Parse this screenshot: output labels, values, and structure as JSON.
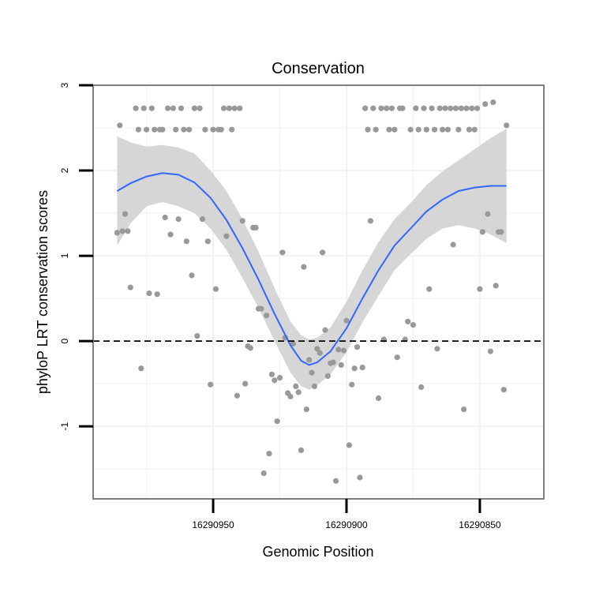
{
  "chart_data": {
    "type": "scatter",
    "title": "Conservation",
    "xlabel": "Genomic Position",
    "ylabel": "phyloP LRT conservation scores",
    "x_reversed": true,
    "xlim": [
      16290995,
      16290826
    ],
    "ylim": [
      -1.85,
      3.0
    ],
    "xticks": [
      16290950,
      16290900,
      16290850
    ],
    "yticks": [
      -1,
      0,
      1,
      2,
      3
    ],
    "reference_line": {
      "y": 0,
      "style": "dashed"
    },
    "grid": true,
    "colors": {
      "points": "#999999",
      "smooth": "#3366ff",
      "ribbon": "#d6d6d6",
      "panel_border": "#7f7f7f",
      "grid": "#f2f2f2"
    },
    "points": [
      [
        16290986,
        1.27
      ],
      [
        16290985,
        2.53
      ],
      [
        16290984,
        1.29
      ],
      [
        16290983,
        1.49
      ],
      [
        16290982,
        1.29
      ],
      [
        16290981,
        0.63
      ],
      [
        16290979,
        2.73
      ],
      [
        16290978,
        2.48
      ],
      [
        16290977,
        -0.32
      ],
      [
        16290976,
        2.73
      ],
      [
        16290975,
        2.48
      ],
      [
        16290974,
        0.56
      ],
      [
        16290973,
        2.73
      ],
      [
        16290972,
        2.48
      ],
      [
        16290971,
        0.55
      ],
      [
        16290970,
        2.48
      ],
      [
        16290969,
        2.48
      ],
      [
        16290968,
        1.45
      ],
      [
        16290967,
        2.73
      ],
      [
        16290966,
        1.25
      ],
      [
        16290965,
        2.73
      ],
      [
        16290964,
        2.48
      ],
      [
        16290963,
        1.43
      ],
      [
        16290962,
        2.73
      ],
      [
        16290961,
        2.48
      ],
      [
        16290960,
        1.17
      ],
      [
        16290959,
        2.48
      ],
      [
        16290958,
        0.77
      ],
      [
        16290957,
        2.73
      ],
      [
        16290956,
        0.06
      ],
      [
        16290955,
        2.73
      ],
      [
        16290954,
        1.43
      ],
      [
        16290953,
        2.48
      ],
      [
        16290952,
        1.17
      ],
      [
        16290951,
        -0.51
      ],
      [
        16290950,
        2.48
      ],
      [
        16290949,
        0.61
      ],
      [
        16290948,
        2.48
      ],
      [
        16290947,
        2.48
      ],
      [
        16290946,
        2.73
      ],
      [
        16290945,
        1.23
      ],
      [
        16290944,
        2.73
      ],
      [
        16290943,
        2.48
      ],
      [
        16290942,
        2.73
      ],
      [
        16290941,
        -0.64
      ],
      [
        16290940,
        2.73
      ],
      [
        16290939,
        1.41
      ],
      [
        16290938,
        -0.5
      ],
      [
        16290937,
        -0.06
      ],
      [
        16290936,
        -0.08
      ],
      [
        16290935,
        1.33
      ],
      [
        16290934,
        1.33
      ],
      [
        16290933,
        0.38
      ],
      [
        16290932,
        0.38
      ],
      [
        16290931,
        -1.55
      ],
      [
        16290930,
        0.3
      ],
      [
        16290929,
        -1.32
      ],
      [
        16290928,
        -0.39
      ],
      [
        16290927,
        -0.46
      ],
      [
        16290926,
        -0.94
      ],
      [
        16290925,
        -0.43
      ],
      [
        16290924,
        1.04
      ],
      [
        16290923,
        0.04
      ],
      [
        16290922,
        -0.61
      ],
      [
        16290921,
        -0.65
      ],
      [
        16290920,
        -0.03
      ],
      [
        16290919,
        -0.53
      ],
      [
        16290918,
        -0.6
      ],
      [
        16290917,
        -1.28
      ],
      [
        16290916,
        0.87
      ],
      [
        16290915,
        -0.8
      ],
      [
        16290914,
        -0.22
      ],
      [
        16290913,
        -0.37
      ],
      [
        16290912,
        -0.53
      ],
      [
        16290911,
        -0.09
      ],
      [
        16290910,
        -0.14
      ],
      [
        16290909,
        1.04
      ],
      [
        16290908,
        0.13
      ],
      [
        16290907,
        -0.41
      ],
      [
        16290906,
        -0.26
      ],
      [
        16290905,
        -0.25
      ],
      [
        16290904,
        -1.64
      ],
      [
        16290903,
        -0.1
      ],
      [
        16290902,
        -0.28
      ],
      [
        16290901,
        -0.11
      ],
      [
        16290900,
        0.24
      ],
      [
        16290899,
        -1.22
      ],
      [
        16290898,
        -0.51
      ],
      [
        16290897,
        -0.32
      ],
      [
        16290896,
        -0.07
      ],
      [
        16290895,
        -1.6
      ],
      [
        16290894,
        -0.31
      ],
      [
        16290893,
        2.73
      ],
      [
        16290892,
        2.48
      ],
      [
        16290891,
        1.41
      ],
      [
        16290890,
        2.73
      ],
      [
        16290889,
        2.48
      ],
      [
        16290888,
        -0.67
      ],
      [
        16290887,
        2.73
      ],
      [
        16290886,
        0.02
      ],
      [
        16290885,
        2.73
      ],
      [
        16290884,
        2.48
      ],
      [
        16290883,
        2.73
      ],
      [
        16290882,
        2.48
      ],
      [
        16290881,
        -0.19
      ],
      [
        16290880,
        2.73
      ],
      [
        16290879,
        2.73
      ],
      [
        16290878,
        0.02
      ],
      [
        16290877,
        0.23
      ],
      [
        16290876,
        2.48
      ],
      [
        16290875,
        0.19
      ],
      [
        16290874,
        2.73
      ],
      [
        16290873,
        2.48
      ],
      [
        16290872,
        -0.54
      ],
      [
        16290871,
        2.73
      ],
      [
        16290870,
        2.48
      ],
      [
        16290869,
        0.61
      ],
      [
        16290868,
        2.73
      ],
      [
        16290867,
        2.48
      ],
      [
        16290866,
        -0.09
      ],
      [
        16290865,
        2.73
      ],
      [
        16290864,
        2.48
      ],
      [
        16290863,
        2.73
      ],
      [
        16290862,
        2.48
      ],
      [
        16290861,
        2.73
      ],
      [
        16290860,
        1.13
      ],
      [
        16290859,
        2.73
      ],
      [
        16290858,
        2.48
      ],
      [
        16290857,
        2.73
      ],
      [
        16290856,
        -0.8
      ],
      [
        16290855,
        2.73
      ],
      [
        16290854,
        2.48
      ],
      [
        16290853,
        2.73
      ],
      [
        16290852,
        2.48
      ],
      [
        16290851,
        2.73
      ],
      [
        16290850,
        0.61
      ],
      [
        16290849,
        1.28
      ],
      [
        16290848,
        2.78
      ],
      [
        16290847,
        1.49
      ],
      [
        16290846,
        -0.12
      ],
      [
        16290845,
        2.8
      ],
      [
        16290844,
        0.65
      ],
      [
        16290843,
        1.28
      ],
      [
        16290842,
        1.28
      ],
      [
        16290841,
        -0.57
      ],
      [
        16290840,
        2.53
      ]
    ],
    "smooth": [
      [
        16290986,
        1.76,
        1.12,
        2.4
      ],
      [
        16290981,
        1.85,
        1.38,
        2.33
      ],
      [
        16290975,
        1.93,
        1.58,
        2.28
      ],
      [
        16290969,
        1.97,
        1.63,
        2.3
      ],
      [
        16290963,
        1.95,
        1.58,
        2.27
      ],
      [
        16290957,
        1.86,
        1.5,
        2.2
      ],
      [
        16290951,
        1.68,
        1.32,
        2.0
      ],
      [
        16290945,
        1.42,
        1.07,
        1.76
      ],
      [
        16290939,
        1.09,
        0.74,
        1.43
      ],
      [
        16290933,
        0.72,
        0.39,
        1.05
      ],
      [
        16290927,
        0.32,
        0.0,
        0.62
      ],
      [
        16290921,
        -0.05,
        -0.37,
        0.23
      ],
      [
        16290917,
        -0.23,
        -0.53,
        0.07
      ],
      [
        16290914,
        -0.28,
        -0.57,
        0.02
      ],
      [
        16290911,
        -0.25,
        -0.52,
        0.04
      ],
      [
        16290906,
        -0.12,
        -0.39,
        0.16
      ],
      [
        16290900,
        0.15,
        -0.13,
        0.46
      ],
      [
        16290894,
        0.5,
        0.22,
        0.83
      ],
      [
        16290888,
        0.83,
        0.53,
        1.16
      ],
      [
        16290882,
        1.12,
        0.83,
        1.43
      ],
      [
        16290876,
        1.32,
        1.02,
        1.62
      ],
      [
        16290870,
        1.52,
        1.2,
        1.83
      ],
      [
        16290864,
        1.66,
        1.32,
        1.99
      ],
      [
        16290858,
        1.76,
        1.36,
        2.12
      ],
      [
        16290852,
        1.8,
        1.32,
        2.25
      ],
      [
        16290846,
        1.82,
        1.25,
        2.38
      ],
      [
        16290840,
        1.82,
        1.15,
        2.49
      ]
    ]
  }
}
